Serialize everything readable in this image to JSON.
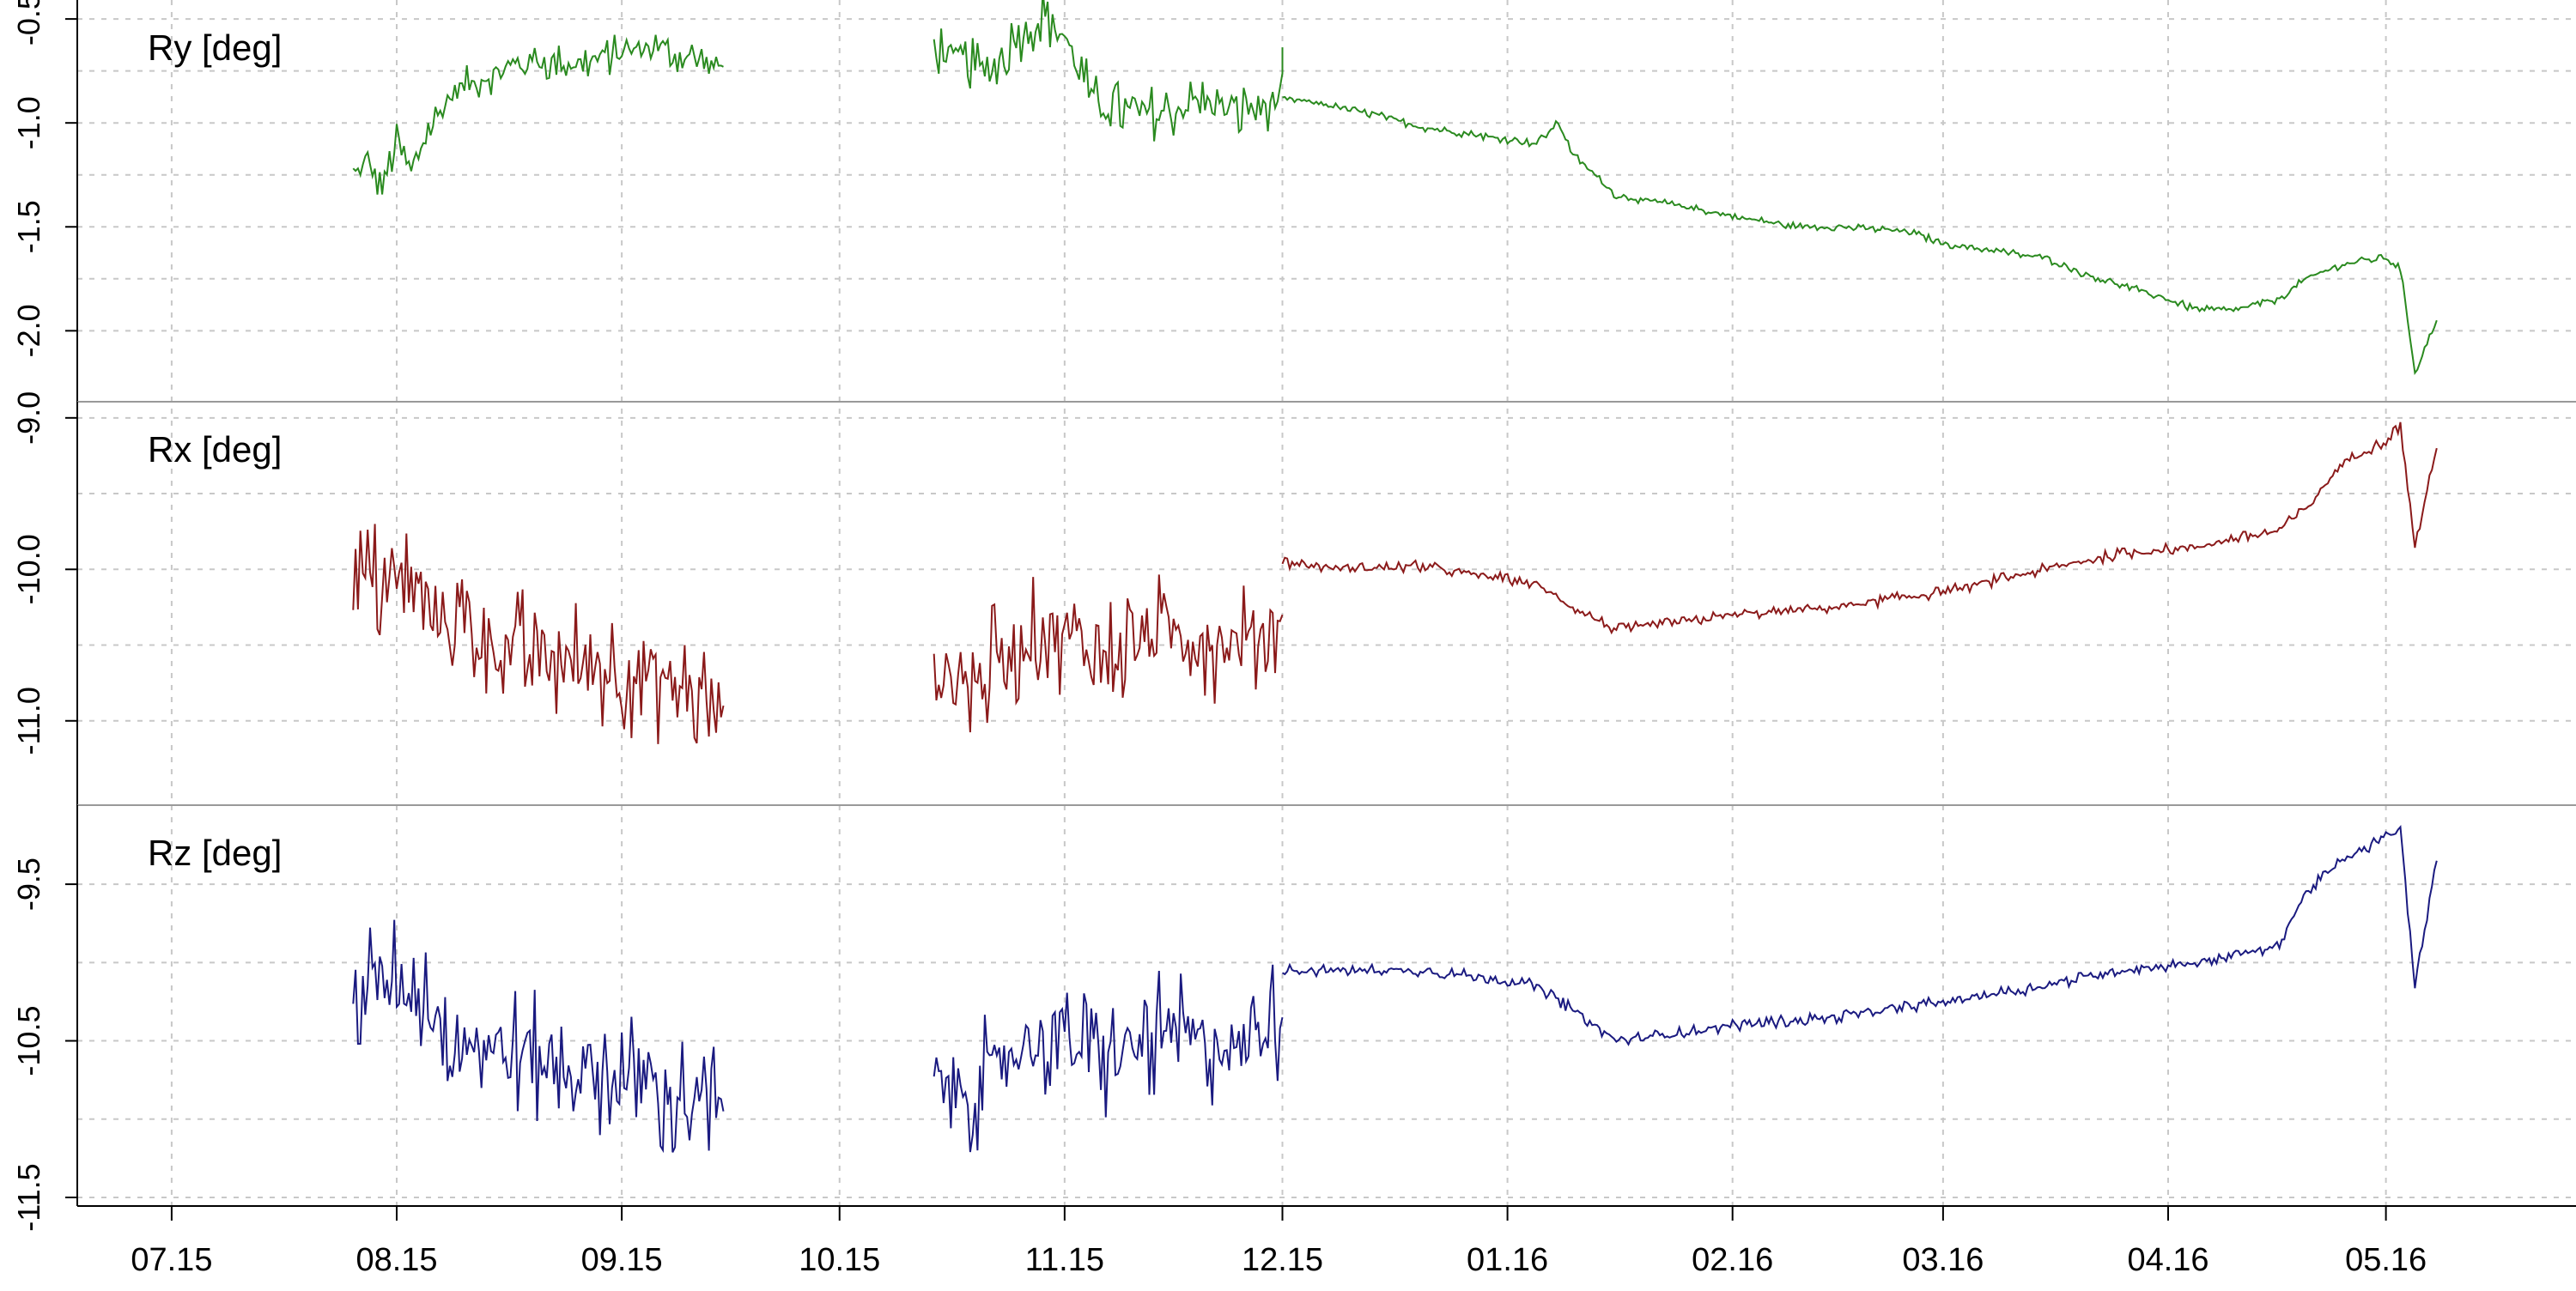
{
  "chart_data": [
    {
      "type": "line",
      "label": "Ry  [deg]",
      "color": "#2a8a1f",
      "yticks": [
        "-0.5",
        "-1.0",
        "-1.5",
        "-2.0"
      ],
      "ytick_values": [
        -0.5,
        -1.0,
        -1.5,
        -2.0
      ],
      "ylim": [
        -2.3,
        -0.45
      ],
      "segments": [
        {
          "x": [
            "2015-07-26",
            "2015-07-28",
            "2015-07-30",
            "2015-08-01",
            "2015-08-03",
            "2015-08-05",
            "2015-08-07",
            "2015-08-09",
            "2015-08-12",
            "2015-08-15",
            "2015-08-20",
            "2015-08-25",
            "2015-08-30",
            "2015-09-05",
            "2015-09-15"
          ],
          "y": [
            -1.25,
            -1.2,
            -1.3,
            -1.1,
            -1.25,
            -1.05,
            -0.95,
            -0.85,
            -0.8,
            -0.75,
            -0.7,
            -0.72,
            -0.68,
            -0.63,
            -0.73
          ],
          "noise": 0.1
        },
        {
          "x": [
            "2015-10-14",
            "2015-10-18",
            "2015-10-22",
            "2015-10-25",
            "2015-10-29",
            "2015-11-01",
            "2015-11-05",
            "2015-11-10",
            "2015-11-15",
            "2015-11-20",
            "2015-11-25",
            "2015-12-01",
            "2015-12-01"
          ],
          "y": [
            -0.62,
            -0.72,
            -0.75,
            -0.6,
            -0.48,
            -0.58,
            -0.9,
            -0.95,
            -0.95,
            -0.9,
            -0.95,
            -0.88,
            -0.65
          ],
          "noise": 0.14
        },
        {
          "x": [
            "2015-12-01",
            "2015-12-05",
            "2015-12-15",
            "2015-12-20",
            "2015-12-30",
            "2016-01-05",
            "2016-01-08",
            "2016-01-10",
            "2016-01-16",
            "2016-01-25",
            "2016-02-01",
            "2016-02-10",
            "2016-02-15",
            "2016-02-25",
            "2016-03-01",
            "2016-03-15",
            "2016-03-20",
            "2016-04-01",
            "2016-04-05",
            "2016-04-10",
            "2016-04-16",
            "2016-04-20",
            "2016-04-25",
            "2016-05-01",
            "2016-05-03",
            "2016-05-05",
            "2016-05-08"
          ],
          "y": [
            -0.88,
            -0.9,
            -0.97,
            -1.02,
            -1.07,
            -1.1,
            -1.0,
            -1.15,
            -1.35,
            -1.4,
            -1.45,
            -1.5,
            -1.5,
            -1.52,
            -1.58,
            -1.65,
            -1.72,
            -1.85,
            -1.9,
            -1.9,
            -1.85,
            -1.75,
            -1.68,
            -1.65,
            -1.7,
            -2.2,
            -1.95
          ],
          "noise": 0.02
        }
      ]
    },
    {
      "type": "line",
      "label": "Rx  [deg]",
      "color": "#8b1a1a",
      "yticks": [
        "-9.0",
        "-10.0",
        "-11.0"
      ],
      "ytick_values": [
        -9.0,
        -10.0,
        -11.0
      ],
      "ylim": [
        -11.5,
        -8.95
      ],
      "segments": [
        {
          "x": [
            "2015-07-26",
            "2015-07-30",
            "2015-08-03",
            "2015-08-08",
            "2015-08-15",
            "2015-08-22",
            "2015-08-29",
            "2015-09-05",
            "2015-09-15"
          ],
          "y": [
            -10.1,
            -10.1,
            -10.1,
            -10.35,
            -10.5,
            -10.6,
            -10.65,
            -10.7,
            -10.9
          ],
          "noise": 0.45
        },
        {
          "x": [
            "2015-10-14",
            "2015-10-20",
            "2015-10-25",
            "2015-11-01",
            "2015-11-05",
            "2015-11-10",
            "2015-11-15",
            "2015-11-20",
            "2015-11-25",
            "2015-12-01"
          ],
          "y": [
            -10.7,
            -10.75,
            -10.5,
            -10.4,
            -10.6,
            -10.5,
            -10.4,
            -10.45,
            -10.5,
            -10.3
          ],
          "noise": 0.42
        },
        {
          "x": [
            "2015-12-01",
            "2015-12-10",
            "2015-12-20",
            "2015-12-30",
            "2016-01-05",
            "2016-01-10",
            "2016-01-16",
            "2016-01-25",
            "2016-02-01",
            "2016-02-15",
            "2016-03-01",
            "2016-03-15",
            "2016-03-25",
            "2016-04-05",
            "2016-04-10",
            "2016-04-16",
            "2016-04-20",
            "2016-04-25",
            "2016-05-01",
            "2016-05-03",
            "2016-05-05",
            "2016-05-08"
          ],
          "y": [
            -9.95,
            -10.0,
            -9.98,
            -10.05,
            -10.1,
            -10.25,
            -10.4,
            -10.35,
            -10.3,
            -10.25,
            -10.15,
            -10.0,
            -9.9,
            -9.85,
            -9.8,
            -9.75,
            -9.6,
            -9.3,
            -9.15,
            -9.05,
            -9.85,
            -9.2
          ],
          "noise": 0.04
        }
      ]
    },
    {
      "type": "line",
      "label": "Rz  [deg]",
      "color": "#1a1a80",
      "yticks": [
        "-9.5",
        "-10.5",
        "-11.5"
      ],
      "ytick_values": [
        -9.5,
        -10.5,
        -11.5
      ],
      "ylim": [
        -11.5,
        -9.05
      ],
      "segments": [
        {
          "x": [
            "2015-07-26",
            "2015-07-30",
            "2015-08-03",
            "2015-08-08",
            "2015-08-15",
            "2015-08-22",
            "2015-08-29",
            "2015-09-05",
            "2015-09-15"
          ],
          "y": [
            -10.15,
            -10.15,
            -10.15,
            -10.4,
            -10.55,
            -10.65,
            -10.7,
            -10.8,
            -10.95
          ],
          "noise": 0.45
        },
        {
          "x": [
            "2015-10-14",
            "2015-10-20",
            "2015-10-25",
            "2015-11-01",
            "2015-11-05",
            "2015-11-10",
            "2015-11-15",
            "2015-11-20",
            "2015-11-25",
            "2015-12-01"
          ],
          "y": [
            -10.75,
            -10.8,
            -10.55,
            -10.45,
            -10.65,
            -10.55,
            -10.45,
            -10.5,
            -10.55,
            -10.35
          ],
          "noise": 0.42
        },
        {
          "x": [
            "2015-12-01",
            "2015-12-10",
            "2015-12-20",
            "2015-12-30",
            "2016-01-05",
            "2016-01-10",
            "2016-01-16",
            "2016-01-25",
            "2016-02-01",
            "2016-02-15",
            "2016-03-01",
            "2016-03-15",
            "2016-03-25",
            "2016-04-05",
            "2016-04-10",
            "2016-04-16",
            "2016-04-20",
            "2016-04-25",
            "2016-05-01",
            "2016-05-03",
            "2016-05-05",
            "2016-05-08"
          ],
          "y": [
            -10.05,
            -10.05,
            -10.05,
            -10.1,
            -10.15,
            -10.3,
            -10.5,
            -10.45,
            -10.4,
            -10.35,
            -10.25,
            -10.15,
            -10.05,
            -10.0,
            -9.95,
            -9.9,
            -9.55,
            -9.35,
            -9.2,
            -9.15,
            -10.15,
            -9.35
          ],
          "noise": 0.04
        }
      ]
    }
  ],
  "x_axis": {
    "tick_labels": [
      "07.15",
      "08.15",
      "09.15",
      "10.15",
      "11.15",
      "12.15",
      "01.16",
      "02.16",
      "03.16",
      "04.16",
      "05.16"
    ],
    "tick_dates": [
      "2015-07-01",
      "2015-08-01",
      "2015-09-01",
      "2015-10-01",
      "2015-11-01",
      "2015-12-01",
      "2016-01-01",
      "2016-02-01",
      "2016-03-01",
      "2016-04-01",
      "2016-05-01"
    ],
    "range": [
      "2015-06-18",
      "2016-05-26"
    ],
    "grid": true
  }
}
